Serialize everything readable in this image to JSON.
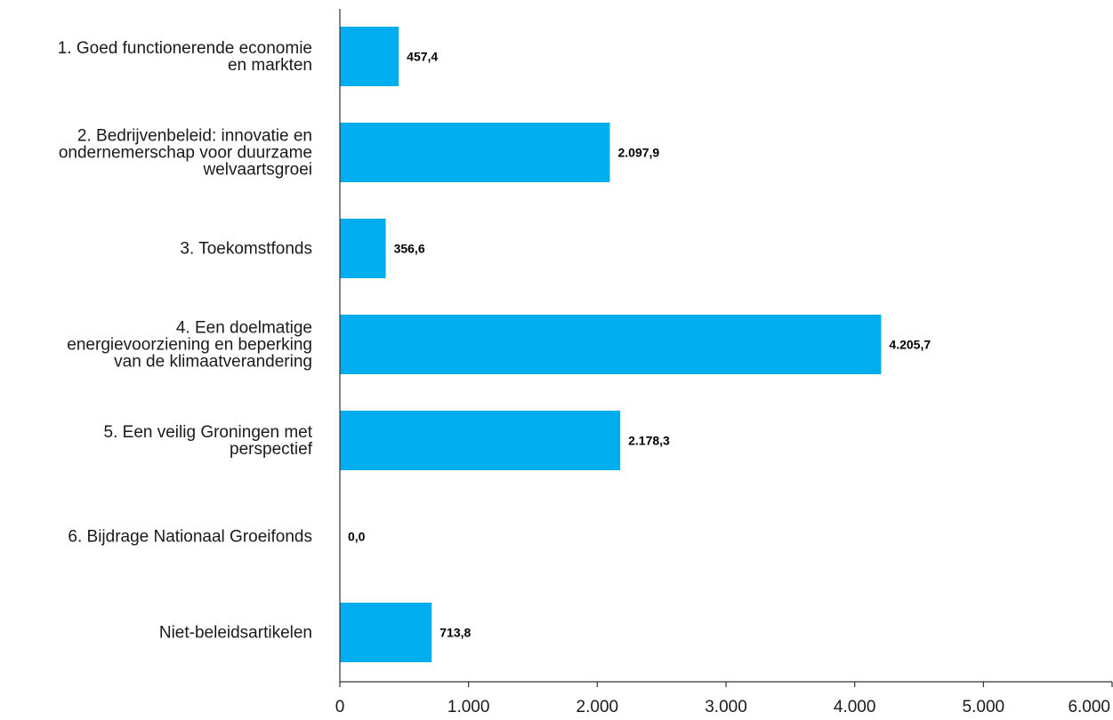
{
  "chart_data": {
    "type": "bar",
    "orientation": "horizontal",
    "categories": [
      [
        "1. Goed functionerende economie",
        "en markten"
      ],
      [
        "2. Bedrijvenbeleid: innovatie en",
        "ondernemerschap voor duurzame",
        "welvaartsgroei"
      ],
      [
        "3. Toekomstfonds"
      ],
      [
        "4. Een doelmatige",
        "energievoorziening en beperking",
        "van de klimaatverandering"
      ],
      [
        "5. Een veilig Groningen met",
        "perspectief"
      ],
      [
        "6. Bijdrage Nationaal Groeifonds"
      ],
      [
        "Niet-beleidsartikelen"
      ]
    ],
    "values": [
      457.4,
      2097.9,
      356.6,
      4205.7,
      2178.3,
      0.0,
      713.8
    ],
    "value_labels": [
      "457,4",
      "2.097,9",
      "356,6",
      "4.205,7",
      "2.178,3",
      "0,0",
      "713,8"
    ],
    "xlim": [
      0,
      6000
    ],
    "xticks": [
      0,
      1000,
      2000,
      3000,
      4000,
      5000,
      6000
    ],
    "xtick_labels": [
      "0",
      "1.000",
      "2.000",
      "3.000",
      "4.000",
      "5.000",
      "6.000"
    ],
    "bar_color": "#00AEEF",
    "axis_color": "#333333",
    "grid": false,
    "legend": "none"
  }
}
